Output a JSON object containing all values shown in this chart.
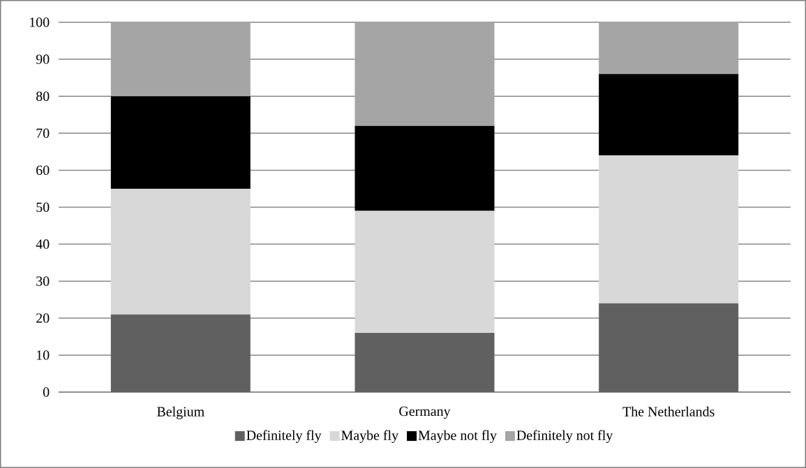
{
  "chart_data": {
    "type": "bar",
    "stacked": true,
    "categories": [
      "Belgium",
      "Germany",
      "The Netherlands"
    ],
    "series": [
      {
        "name": "Definitely fly",
        "color": "#606060",
        "values": [
          21,
          16,
          24
        ]
      },
      {
        "name": "Maybe fly",
        "color": "#d8d8d8",
        "values": [
          34,
          33,
          40
        ]
      },
      {
        "name": "Maybe not fly",
        "color": "#000000",
        "values": [
          25,
          23,
          22
        ]
      },
      {
        "name": "Definitely not fly",
        "color": "#a5a5a5",
        "values": [
          20,
          28,
          14
        ]
      }
    ],
    "ylim": [
      0,
      100
    ],
    "yticks": [
      0,
      10,
      20,
      30,
      40,
      50,
      60,
      70,
      80,
      90,
      100
    ],
    "grid": "y",
    "legend": "bottom"
  }
}
